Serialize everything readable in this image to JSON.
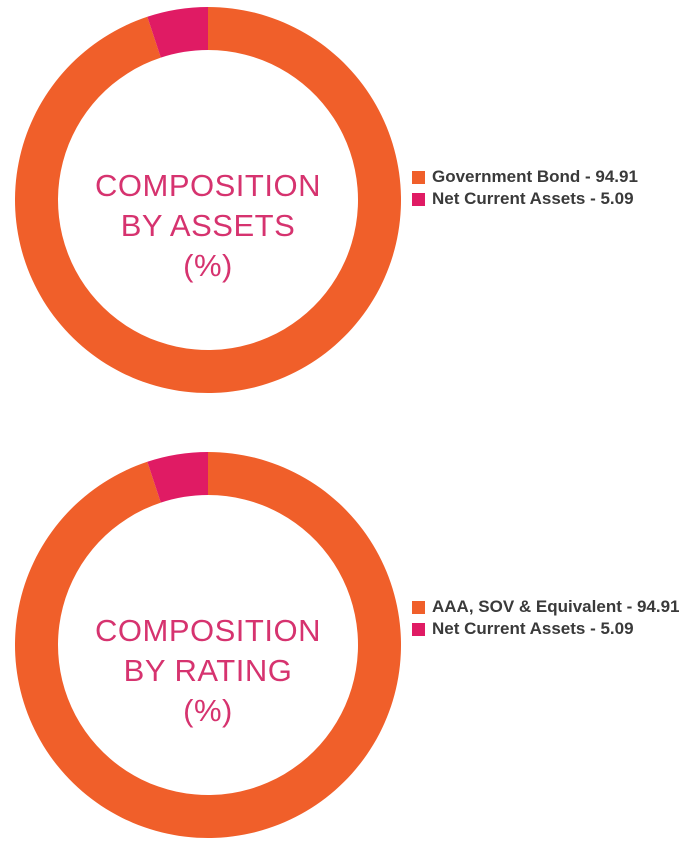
{
  "colors": {
    "orange": "#f05f2a",
    "pink": "#e01b64",
    "title": "#d6336f"
  },
  "chart_data": [
    {
      "type": "pie",
      "title_lines": [
        "COMPOSITION",
        "BY ASSETS",
        "(%)"
      ],
      "categories": [
        "Government Bond",
        "Net Current Assets"
      ],
      "values": [
        94.91,
        5.09
      ],
      "legend": [
        "Government Bond - 94.91",
        "Net Current Assets - 5.09"
      ],
      "legend_placement": "right"
    },
    {
      "type": "pie",
      "title_lines": [
        "COMPOSITION",
        "BY RATING",
        "(%)"
      ],
      "categories": [
        "AAA, SOV & Equivalent",
        "Net Current Assets"
      ],
      "values": [
        94.91,
        5.09
      ],
      "legend": [
        "AAA, SOV & Equivalent - 94.91",
        "Net Current Assets - 5.09"
      ],
      "legend_placement": "right"
    }
  ]
}
